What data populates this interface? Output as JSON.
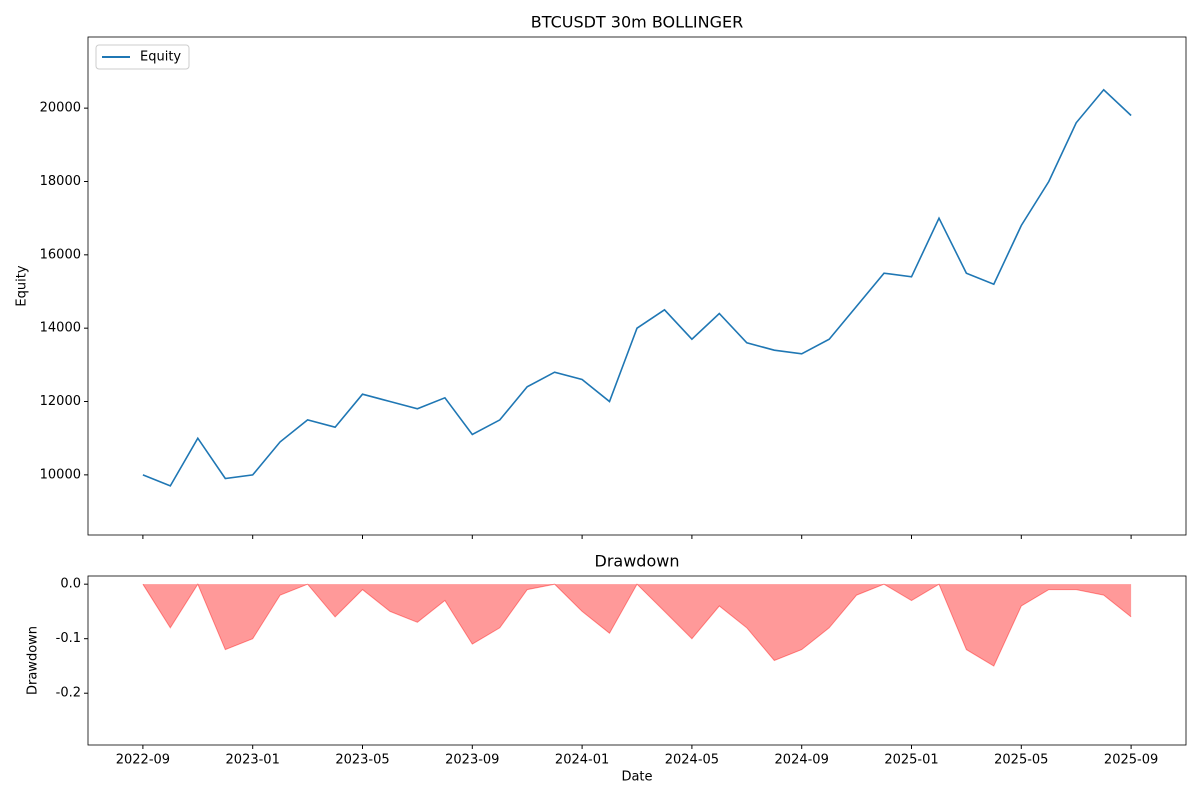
{
  "chart_data": [
    {
      "type": "line",
      "title": "BTCUSDT 30m BOLLINGER",
      "y_label": "Equity",
      "x": [
        "2022-09",
        "2022-10",
        "2022-11",
        "2022-12",
        "2023-01",
        "2023-02",
        "2023-03",
        "2023-04",
        "2023-05",
        "2023-06",
        "2023-07",
        "2023-08",
        "2023-09",
        "2023-10",
        "2023-11",
        "2023-12",
        "2024-01",
        "2024-02",
        "2024-03",
        "2024-04",
        "2024-05",
        "2024-06",
        "2024-07",
        "2024-08",
        "2024-09",
        "2024-10",
        "2024-11",
        "2024-12",
        "2025-01",
        "2025-02",
        "2025-03",
        "2025-04",
        "2025-05",
        "2025-06",
        "2025-07",
        "2025-08",
        "2025-09"
      ],
      "series": [
        {
          "name": "Equity",
          "color": "#1f77b4",
          "values": [
            10000,
            9700,
            11000,
            9900,
            10000,
            10900,
            11500,
            11300,
            12200,
            12000,
            11800,
            12100,
            11100,
            11500,
            12400,
            12800,
            12600,
            12000,
            14000,
            14500,
            13700,
            14400,
            13600,
            13400,
            13300,
            13700,
            14600,
            15500,
            15400,
            17000,
            15500,
            15200,
            16800,
            18000,
            19600,
            20500,
            19800
          ]
        }
      ],
      "xlim": [
        "2022-07",
        "2025-11"
      ],
      "xticks": [
        "2022-09",
        "2023-01",
        "2023-05",
        "2023-09",
        "2024-01",
        "2024-05",
        "2024-09",
        "2025-01",
        "2025-05",
        "2025-09"
      ],
      "ylim": [
        8360,
        21940
      ],
      "yticks": [
        10000,
        12000,
        14000,
        16000,
        18000,
        20000
      ],
      "legend": "upper left"
    },
    {
      "type": "area",
      "title": "Drawdown",
      "y_label": "Drawdown",
      "x_label": "Date",
      "x": [
        "2022-09",
        "2022-10",
        "2022-11",
        "2022-12",
        "2023-01",
        "2023-02",
        "2023-03",
        "2023-04",
        "2023-05",
        "2023-06",
        "2023-07",
        "2023-08",
        "2023-09",
        "2023-10",
        "2023-11",
        "2023-12",
        "2024-01",
        "2024-02",
        "2024-03",
        "2024-04",
        "2024-05",
        "2024-06",
        "2024-07",
        "2024-08",
        "2024-09",
        "2024-10",
        "2024-11",
        "2024-12",
        "2025-01",
        "2025-02",
        "2025-03",
        "2025-04",
        "2025-05",
        "2025-06",
        "2025-07",
        "2025-08",
        "2025-09"
      ],
      "series": [
        {
          "color": "#ff0000",
          "values": [
            0,
            -0.08,
            0,
            -0.12,
            -0.1,
            -0.02,
            0,
            -0.06,
            -0.01,
            -0.05,
            -0.07,
            -0.03,
            -0.11,
            -0.08,
            -0.01,
            0,
            -0.05,
            -0.09,
            0,
            -0.05,
            -0.1,
            -0.04,
            -0.08,
            -0.14,
            -0.12,
            -0.08,
            -0.02,
            0,
            -0.03,
            0,
            -0.12,
            -0.15,
            -0.04,
            -0.01,
            -0.01,
            -0.02,
            -0.06
          ]
        }
      ],
      "xlim": [
        "2022-07",
        "2025-11"
      ],
      "xticks": [
        "2022-09",
        "2023-01",
        "2023-05",
        "2023-09",
        "2024-01",
        "2024-05",
        "2024-09",
        "2025-01",
        "2025-05",
        "2025-09"
      ],
      "ylim": [
        -0.295,
        0.015
      ],
      "yticks": [
        {
          "value": 0,
          "label": "0.0"
        },
        {
          "value": -0.1,
          "label": "-0.1"
        },
        {
          "value": -0.2,
          "label": "-0.2"
        }
      ]
    }
  ]
}
